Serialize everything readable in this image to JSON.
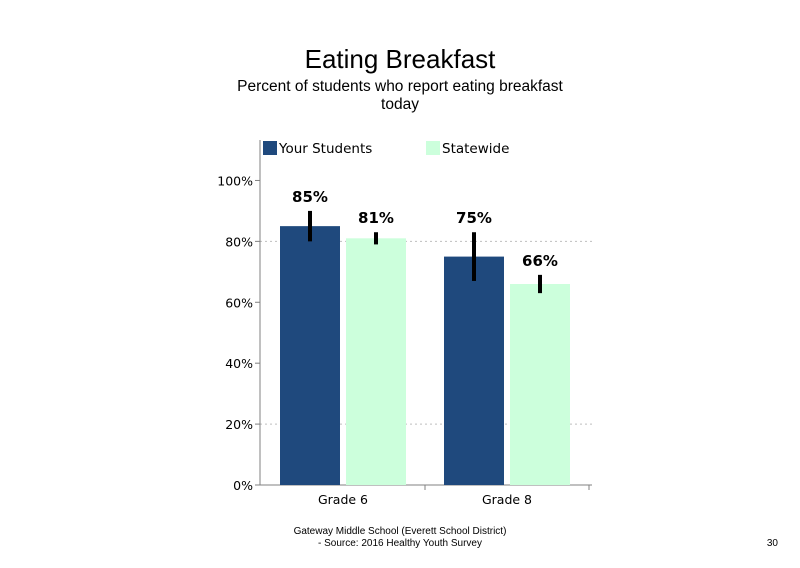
{
  "title": "Eating Breakfast",
  "subtitle": "Percent of students who report eating breakfast today",
  "footer": {
    "line1": "Gateway Middle School (Everett School District)",
    "line2": "- Source: 2016 Healthy Youth Survey"
  },
  "page_number": "30",
  "colors": {
    "your_students": "#1f497d",
    "statewide": "#ccffdc",
    "error_bar": "#000000",
    "gridline": "#bfbfbf"
  },
  "chart_data": {
    "type": "bar",
    "categories": [
      "Grade 6",
      "Grade 8"
    ],
    "series": [
      {
        "name": "Your Students",
        "values": [
          85,
          75
        ],
        "error": [
          [
            80,
            90
          ],
          [
            67,
            83
          ]
        ],
        "labels": [
          "85%",
          "75%"
        ]
      },
      {
        "name": "Statewide",
        "values": [
          81,
          66
        ],
        "error": [
          [
            79,
            83
          ],
          [
            63,
            69
          ]
        ],
        "labels": [
          "81%",
          "66%"
        ]
      }
    ],
    "yticks": [
      "0%",
      "20%",
      "40%",
      "60%",
      "80%",
      "100%"
    ],
    "ylim": [
      0,
      100
    ],
    "grid": "dotted at 20% and 80%",
    "legend": "top",
    "xlabel": "",
    "ylabel": ""
  }
}
